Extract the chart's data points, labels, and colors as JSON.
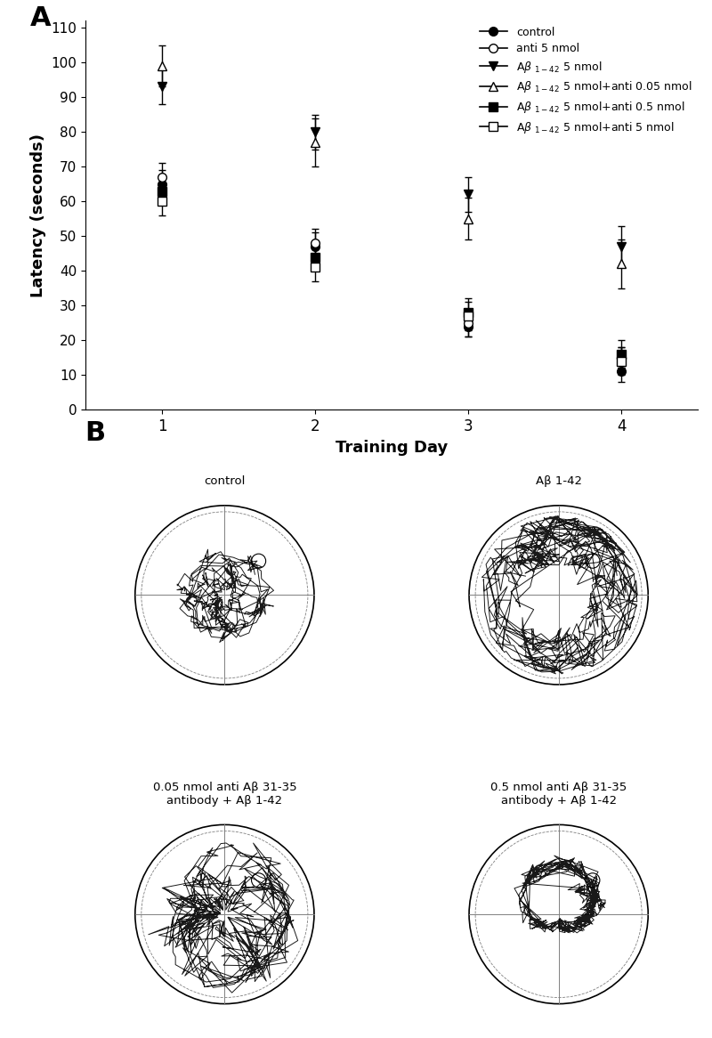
{
  "title_A": "A",
  "title_B": "B",
  "xlabel": "Training Day",
  "ylabel": "Latency (seconds)",
  "days": [
    1,
    2,
    3,
    4
  ],
  "ylim": [
    0,
    110
  ],
  "yticks": [
    0,
    10,
    20,
    30,
    40,
    50,
    60,
    70,
    80,
    90,
    100,
    110
  ],
  "series": [
    {
      "label": "control",
      "values": [
        65,
        47,
        24,
        11
      ],
      "errors": [
        4,
        4,
        3,
        3
      ],
      "marker": "o",
      "markerfacecolor": "black"
    },
    {
      "label": "anti 5 nmol",
      "values": [
        67,
        48,
        25,
        15
      ],
      "errors": [
        4,
        4,
        4,
        3
      ],
      "marker": "o",
      "markerfacecolor": "white"
    },
    {
      "label": "A\\u03b2 1-42 5 nmol",
      "values": [
        93,
        80,
        62,
        47
      ],
      "errors": [
        5,
        5,
        5,
        6
      ],
      "marker": "v",
      "markerfacecolor": "black"
    },
    {
      "label": "A\\u03b2 1-42 5 nmol+anti 0.05 nmol",
      "values": [
        99,
        77,
        55,
        42
      ],
      "errors": [
        6,
        7,
        6,
        7
      ],
      "marker": "^",
      "markerfacecolor": "white"
    },
    {
      "label": "A\\u03b2 1-42 5 nmol+anti 0.5 nmol",
      "values": [
        63,
        44,
        28,
        16
      ],
      "errors": [
        4,
        4,
        4,
        4
      ],
      "marker": "s",
      "markerfacecolor": "black"
    },
    {
      "label": "A\\u03b2 1-42 5 nmol+anti 5 nmol",
      "values": [
        60,
        41,
        27,
        14
      ],
      "errors": [
        4,
        4,
        4,
        4
      ],
      "marker": "s",
      "markerfacecolor": "white"
    }
  ],
  "pool_titles": [
    "control",
    "Aβ 1-42",
    "0.05 nmol anti Aβ 31-35\nantibody + Aβ 1-42",
    "0.5 nmol anti Aβ 31-35\nantibody + Aβ 1-42"
  ],
  "background_color": "white"
}
